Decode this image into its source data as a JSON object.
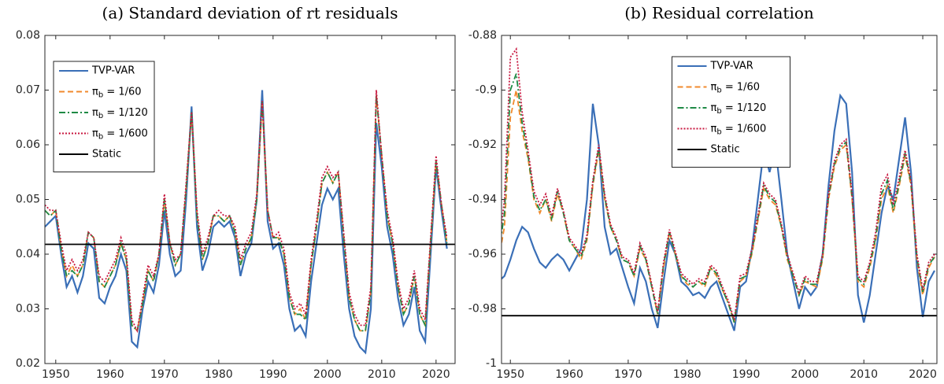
{
  "chart_data": [
    {
      "type": "line",
      "title": "(a) Standard deviation of rt residuals",
      "legend": "upper left",
      "xlim": [
        1948,
        2023.5
      ],
      "ylim": [
        0.02,
        0.08
      ],
      "xticks": [
        1950,
        1960,
        1970,
        1980,
        1990,
        2000,
        2010,
        2020
      ],
      "yticks": [
        0.02,
        0.03,
        0.04,
        0.05,
        0.06,
        0.07,
        0.08
      ],
      "x": [
        1948,
        1949,
        1950,
        1951,
        1952,
        1953,
        1954,
        1955,
        1956,
        1957,
        1958,
        1959,
        1960,
        1961,
        1962,
        1963,
        1964,
        1965,
        1966,
        1967,
        1968,
        1969,
        1970,
        1971,
        1972,
        1973,
        1974,
        1975,
        1976,
        1977,
        1978,
        1979,
        1980,
        1981,
        1982,
        1983,
        1984,
        1985,
        1986,
        1987,
        1988,
        1989,
        1990,
        1991,
        1992,
        1993,
        1994,
        1995,
        1996,
        1997,
        1998,
        1999,
        2000,
        2001,
        2002,
        2003,
        2004,
        2005,
        2006,
        2007,
        2008,
        2009,
        2010,
        2011,
        2012,
        2013,
        2014,
        2015,
        2016,
        2017,
        2018,
        2019,
        2020,
        2021,
        2022
      ],
      "series": [
        {
          "name": "TVP-VAR",
          "color": "#3a6fb7",
          "style": "solid",
          "values": [
            0.045,
            0.046,
            0.047,
            0.04,
            0.034,
            0.036,
            0.033,
            0.036,
            0.042,
            0.041,
            0.032,
            0.031,
            0.034,
            0.036,
            0.04,
            0.037,
            0.024,
            0.023,
            0.03,
            0.035,
            0.033,
            0.038,
            0.048,
            0.04,
            0.036,
            0.037,
            0.05,
            0.067,
            0.045,
            0.037,
            0.04,
            0.045,
            0.046,
            0.045,
            0.046,
            0.043,
            0.036,
            0.04,
            0.042,
            0.05,
            0.07,
            0.046,
            0.041,
            0.042,
            0.038,
            0.03,
            0.026,
            0.027,
            0.025,
            0.035,
            0.042,
            0.049,
            0.052,
            0.05,
            0.052,
            0.04,
            0.03,
            0.025,
            0.023,
            0.022,
            0.03,
            0.064,
            0.056,
            0.045,
            0.04,
            0.032,
            0.027,
            0.029,
            0.034,
            0.026,
            0.024,
            0.04,
            0.056,
            0.048,
            0.041
          ]
        },
        {
          "name": "πb = 1/60",
          "color": "#f0892c",
          "style": "dashed",
          "values": [
            0.048,
            0.047,
            0.048,
            0.041,
            0.036,
            0.038,
            0.036,
            0.038,
            0.044,
            0.043,
            0.035,
            0.034,
            0.036,
            0.038,
            0.042,
            0.039,
            0.027,
            0.026,
            0.031,
            0.037,
            0.035,
            0.04,
            0.05,
            0.042,
            0.038,
            0.04,
            0.052,
            0.066,
            0.047,
            0.039,
            0.042,
            0.047,
            0.047,
            0.046,
            0.047,
            0.044,
            0.038,
            0.041,
            0.043,
            0.05,
            0.068,
            0.048,
            0.043,
            0.043,
            0.04,
            0.032,
            0.029,
            0.03,
            0.028,
            0.038,
            0.045,
            0.053,
            0.055,
            0.053,
            0.055,
            0.043,
            0.032,
            0.028,
            0.026,
            0.026,
            0.033,
            0.069,
            0.058,
            0.047,
            0.042,
            0.034,
            0.029,
            0.031,
            0.036,
            0.029,
            0.027,
            0.042,
            0.057,
            0.049,
            0.042
          ]
        },
        {
          "name": "πb = 1/120",
          "color": "#1e8a45",
          "style": "dashdot",
          "values": [
            0.048,
            0.047,
            0.048,
            0.041,
            0.036,
            0.037,
            0.036,
            0.038,
            0.044,
            0.043,
            0.035,
            0.034,
            0.036,
            0.038,
            0.042,
            0.039,
            0.027,
            0.026,
            0.031,
            0.037,
            0.035,
            0.04,
            0.05,
            0.042,
            0.038,
            0.04,
            0.052,
            0.066,
            0.047,
            0.039,
            0.042,
            0.047,
            0.047,
            0.046,
            0.047,
            0.044,
            0.038,
            0.041,
            0.043,
            0.05,
            0.068,
            0.048,
            0.043,
            0.043,
            0.04,
            0.032,
            0.029,
            0.029,
            0.028,
            0.038,
            0.045,
            0.053,
            0.055,
            0.053,
            0.055,
            0.043,
            0.032,
            0.028,
            0.026,
            0.026,
            0.033,
            0.069,
            0.058,
            0.047,
            0.042,
            0.034,
            0.029,
            0.031,
            0.036,
            0.029,
            0.027,
            0.042,
            0.057,
            0.049,
            0.042
          ]
        },
        {
          "name": "πb = 1/600",
          "color": "#c8173f",
          "style": "dotted",
          "values": [
            0.049,
            0.048,
            0.048,
            0.042,
            0.037,
            0.039,
            0.037,
            0.039,
            0.044,
            0.043,
            0.036,
            0.035,
            0.037,
            0.039,
            0.043,
            0.04,
            0.028,
            0.026,
            0.032,
            0.038,
            0.036,
            0.04,
            0.051,
            0.042,
            0.039,
            0.04,
            0.053,
            0.066,
            0.048,
            0.04,
            0.043,
            0.047,
            0.048,
            0.047,
            0.047,
            0.045,
            0.039,
            0.042,
            0.044,
            0.051,
            0.068,
            0.048,
            0.043,
            0.044,
            0.041,
            0.033,
            0.03,
            0.031,
            0.029,
            0.039,
            0.046,
            0.054,
            0.056,
            0.054,
            0.055,
            0.044,
            0.033,
            0.029,
            0.027,
            0.027,
            0.034,
            0.07,
            0.058,
            0.048,
            0.043,
            0.035,
            0.03,
            0.032,
            0.037,
            0.03,
            0.028,
            0.043,
            0.058,
            0.049,
            0.043
          ]
        },
        {
          "name": "Static",
          "color": "#000000",
          "style": "solid",
          "value": 0.0418
        }
      ]
    },
    {
      "type": "line",
      "title": "(b) Residual correlation",
      "legend": "upper center",
      "xlim": [
        1948.5,
        2022.4
      ],
      "ylim": [
        -1,
        -0.88
      ],
      "xticks": [
        1950,
        1960,
        1970,
        1980,
        1990,
        2000,
        2010,
        2020
      ],
      "yticks": [
        -1,
        -0.98,
        -0.96,
        -0.94,
        -0.92,
        -0.9,
        -0.88
      ],
      "x": [
        1948,
        1949,
        1950,
        1951,
        1952,
        1953,
        1954,
        1955,
        1956,
        1957,
        1958,
        1959,
        1960,
        1961,
        1962,
        1963,
        1964,
        1965,
        1966,
        1967,
        1968,
        1969,
        1970,
        1971,
        1972,
        1973,
        1974,
        1975,
        1976,
        1977,
        1978,
        1979,
        1980,
        1981,
        1982,
        1983,
        1984,
        1985,
        1986,
        1987,
        1988,
        1989,
        1990,
        1991,
        1992,
        1993,
        1994,
        1995,
        1996,
        1997,
        1998,
        1999,
        2000,
        2001,
        2002,
        2003,
        2004,
        2005,
        2006,
        2007,
        2008,
        2009,
        2010,
        2011,
        2012,
        2013,
        2014,
        2015,
        2016,
        2017,
        2018,
        2019,
        2020,
        2021,
        2022
      ],
      "series": [
        {
          "name": "TVP-VAR",
          "color": "#3a6fb7",
          "style": "solid",
          "values": [
            -0.97,
            -0.968,
            -0.962,
            -0.955,
            -0.95,
            -0.952,
            -0.958,
            -0.963,
            -0.965,
            -0.962,
            -0.96,
            -0.962,
            -0.966,
            -0.962,
            -0.958,
            -0.94,
            -0.905,
            -0.92,
            -0.95,
            -0.96,
            -0.958,
            -0.965,
            -0.972,
            -0.978,
            -0.965,
            -0.97,
            -0.98,
            -0.987,
            -0.97,
            -0.955,
            -0.96,
            -0.97,
            -0.972,
            -0.975,
            -0.974,
            -0.976,
            -0.972,
            -0.97,
            -0.976,
            -0.982,
            -0.988,
            -0.972,
            -0.97,
            -0.958,
            -0.94,
            -0.922,
            -0.93,
            -0.921,
            -0.94,
            -0.96,
            -0.97,
            -0.98,
            -0.972,
            -0.975,
            -0.972,
            -0.96,
            -0.935,
            -0.915,
            -0.902,
            -0.905,
            -0.93,
            -0.975,
            -0.985,
            -0.975,
            -0.96,
            -0.945,
            -0.935,
            -0.94,
            -0.925,
            -0.91,
            -0.93,
            -0.965,
            -0.983,
            -0.97,
            -0.966
          ]
        },
        {
          "name": "πb = 1/60",
          "color": "#f0892c",
          "style": "dashed",
          "values": [
            -0.962,
            -0.95,
            -0.91,
            -0.9,
            -0.915,
            -0.925,
            -0.94,
            -0.945,
            -0.94,
            -0.948,
            -0.938,
            -0.945,
            -0.955,
            -0.958,
            -0.962,
            -0.955,
            -0.935,
            -0.922,
            -0.94,
            -0.95,
            -0.955,
            -0.962,
            -0.963,
            -0.968,
            -0.958,
            -0.962,
            -0.972,
            -0.982,
            -0.965,
            -0.952,
            -0.96,
            -0.968,
            -0.971,
            -0.972,
            -0.97,
            -0.972,
            -0.965,
            -0.968,
            -0.973,
            -0.978,
            -0.985,
            -0.97,
            -0.968,
            -0.96,
            -0.948,
            -0.936,
            -0.94,
            -0.942,
            -0.95,
            -0.962,
            -0.968,
            -0.975,
            -0.97,
            -0.971,
            -0.972,
            -0.962,
            -0.94,
            -0.928,
            -0.922,
            -0.92,
            -0.94,
            -0.97,
            -0.972,
            -0.965,
            -0.955,
            -0.94,
            -0.935,
            -0.945,
            -0.935,
            -0.924,
            -0.935,
            -0.962,
            -0.975,
            -0.965,
            -0.961
          ]
        },
        {
          "name": "πb = 1/120",
          "color": "#1e8a45",
          "style": "dashdot",
          "values": [
            -0.96,
            -0.945,
            -0.9,
            -0.894,
            -0.912,
            -0.924,
            -0.939,
            -0.944,
            -0.94,
            -0.947,
            -0.937,
            -0.945,
            -0.955,
            -0.958,
            -0.961,
            -0.954,
            -0.934,
            -0.921,
            -0.939,
            -0.95,
            -0.955,
            -0.962,
            -0.963,
            -0.968,
            -0.957,
            -0.962,
            -0.972,
            -0.982,
            -0.964,
            -0.952,
            -0.96,
            -0.968,
            -0.97,
            -0.972,
            -0.97,
            -0.971,
            -0.965,
            -0.967,
            -0.973,
            -0.978,
            -0.985,
            -0.969,
            -0.968,
            -0.959,
            -0.947,
            -0.935,
            -0.939,
            -0.941,
            -0.95,
            -0.961,
            -0.968,
            -0.975,
            -0.969,
            -0.971,
            -0.971,
            -0.961,
            -0.939,
            -0.927,
            -0.921,
            -0.919,
            -0.939,
            -0.969,
            -0.971,
            -0.964,
            -0.954,
            -0.938,
            -0.933,
            -0.944,
            -0.934,
            -0.923,
            -0.934,
            -0.961,
            -0.974,
            -0.964,
            -0.961
          ]
        },
        {
          "name": "πb = 1/600",
          "color": "#c8173f",
          "style": "dotted",
          "values": [
            -0.958,
            -0.94,
            -0.888,
            -0.885,
            -0.908,
            -0.922,
            -0.937,
            -0.942,
            -0.938,
            -0.946,
            -0.936,
            -0.944,
            -0.954,
            -0.957,
            -0.96,
            -0.953,
            -0.933,
            -0.92,
            -0.938,
            -0.949,
            -0.954,
            -0.961,
            -0.962,
            -0.967,
            -0.956,
            -0.961,
            -0.971,
            -0.981,
            -0.963,
            -0.951,
            -0.959,
            -0.967,
            -0.969,
            -0.971,
            -0.969,
            -0.97,
            -0.964,
            -0.966,
            -0.972,
            -0.977,
            -0.984,
            -0.968,
            -0.967,
            -0.958,
            -0.946,
            -0.934,
            -0.938,
            -0.94,
            -0.949,
            -0.96,
            -0.967,
            -0.974,
            -0.968,
            -0.97,
            -0.97,
            -0.96,
            -0.938,
            -0.926,
            -0.92,
            -0.918,
            -0.938,
            -0.968,
            -0.97,
            -0.963,
            -0.952,
            -0.935,
            -0.931,
            -0.942,
            -0.932,
            -0.922,
            -0.933,
            -0.96,
            -0.973,
            -0.963,
            -0.96
          ]
        },
        {
          "name": "Static",
          "color": "#000000",
          "style": "solid",
          "value": -0.9825
        }
      ]
    }
  ]
}
